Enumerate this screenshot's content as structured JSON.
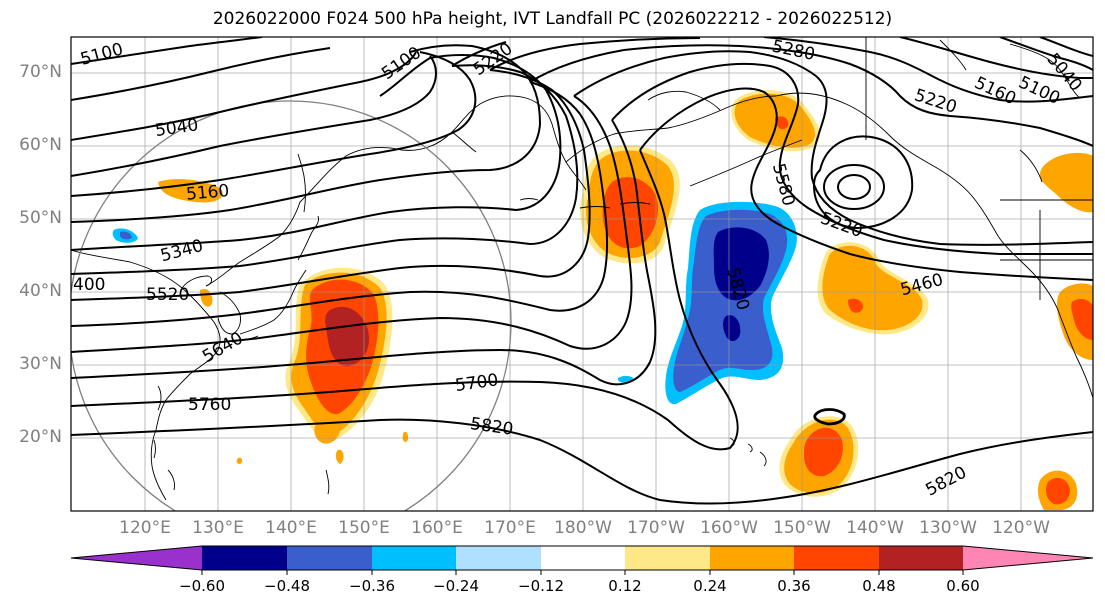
{
  "title": "2026022000 F024 500 hPa height, IVT Landfall PC (2026022212 - 2026022512)",
  "lat_labels": [
    "70°N",
    "60°N",
    "50°N",
    "40°N",
    "30°N",
    "20°N"
  ],
  "lon_labels": [
    "120°E",
    "130°E",
    "140°E",
    "150°E",
    "160°E",
    "170°E",
    "180°W",
    "170°W",
    "160°W",
    "150°W",
    "140°W",
    "130°W",
    "120°W"
  ],
  "contour_labels": [
    "5100",
    "5100",
    "5220",
    "5280",
    "5220",
    "5160",
    "5100",
    "5040",
    "5040",
    "5160",
    "5340",
    "5580",
    "5220",
    "5460",
    "400",
    "5520",
    "5640",
    "5700",
    "5820",
    "5760",
    "5820",
    "5820"
  ],
  "colorbar": {
    "ticks": [
      "−0.60",
      "−0.48",
      "−0.36",
      "−0.24",
      "−0.12",
      "0.12",
      "0.24",
      "0.36",
      "0.48",
      "0.60"
    ],
    "colors": [
      "#9932cc",
      "#00008b",
      "#3a5fcd",
      "#00bfff",
      "#b0e0ff",
      "#ffffff",
      "#ffe887",
      "#ffa500",
      "#ff4500",
      "#b22222",
      "#ff85b4"
    ]
  }
}
